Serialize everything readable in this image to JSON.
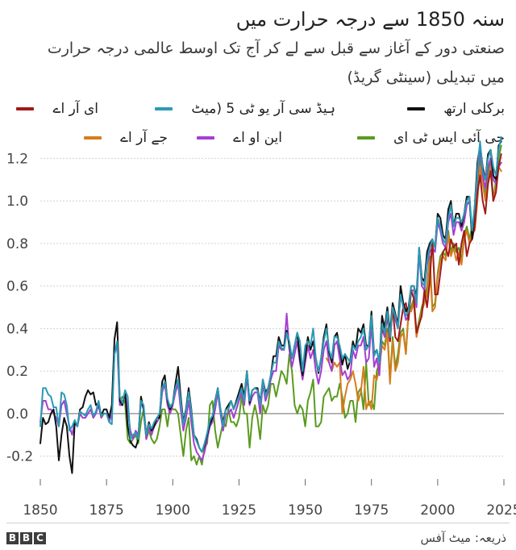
{
  "title": "سنہ 1850 سے درجہ حرارت میں",
  "subtitle": "صنعتی دور کے آغاز سے قبل سے لے کر آج تک اوسط عالمی درجہ حرارت میں تبدیلی (سینٹی گریڈ)",
  "source": "ذریعہ: میٹ آفس",
  "logo": "BBC",
  "colors": {
    "berkeley": "#111111",
    "hadcrut5": "#2a9bb5",
    "era": "#a11a1a",
    "gistemp": "#5a9a1e",
    "noaa": "#a43fd1",
    "jra": "#d67c1c",
    "grid": "#d0d0d0",
    "zero": "#888888"
  },
  "chart_data": {
    "type": "line",
    "title": "سنہ 1850 سے درجہ حرارت میں",
    "xlabel": "",
    "ylabel": "",
    "xlim": [
      1850,
      2025
    ],
    "ylim": [
      -0.3,
      1.3
    ],
    "x_ticks": [
      "1850",
      "1875",
      "1900",
      "1925",
      "1950",
      "1975",
      "2000",
      "2025"
    ],
    "y_ticks": [
      "-0.2",
      "0.0",
      "0.2",
      "0.4",
      "0.6",
      "0.8",
      "1.0",
      "1.2"
    ],
    "grid": true,
    "legend_position": "top",
    "series": [
      {
        "name": "برکلی ارتھ",
        "color": "#111111",
        "start_year": 1850,
        "values": [
          -0.14,
          -0.02,
          -0.05,
          -0.04,
          0.0,
          0.02,
          -0.06,
          -0.22,
          -0.1,
          -0.02,
          -0.06,
          -0.2,
          -0.28,
          -0.04,
          -0.06,
          0.02,
          0.03,
          0.08,
          0.11,
          0.09,
          0.1,
          0.04,
          0.05,
          -0.01,
          0.02,
          0.02,
          -0.02,
          0.04,
          0.35,
          0.43,
          0.06,
          0.04,
          0.1,
          -0.06,
          -0.13,
          -0.15,
          -0.16,
          -0.12,
          0.08,
          0.02,
          -0.1,
          -0.04,
          -0.08,
          -0.06,
          -0.02,
          -0.02,
          0.15,
          0.18,
          0.06,
          0.02,
          0.05,
          0.14,
          0.22,
          0.08,
          -0.04,
          0.02,
          0.12,
          0.02,
          -0.1,
          -0.12,
          -0.16,
          -0.18,
          -0.15,
          -0.1,
          -0.05,
          -0.02,
          0.06,
          0.12,
          0.02,
          -0.04,
          0.02,
          0.04,
          0.06,
          0.02,
          0.06,
          0.1,
          0.14,
          0.08,
          0.2,
          0.05,
          0.11,
          0.12,
          0.12,
          0.05,
          0.16,
          0.1,
          0.12,
          0.18,
          0.27,
          0.27,
          0.36,
          0.32,
          0.32,
          0.39,
          0.32,
          0.26,
          0.32,
          0.38,
          0.26,
          0.18,
          0.27,
          0.36,
          0.3,
          0.34,
          0.26,
          0.19,
          0.26,
          0.36,
          0.42,
          0.29,
          0.24,
          0.36,
          0.38,
          0.31,
          0.23,
          0.28,
          0.21,
          0.25,
          0.34,
          0.3,
          0.4,
          0.38,
          0.42,
          0.32,
          0.32,
          0.48,
          0.28,
          0.3,
          0.24,
          0.46,
          0.4,
          0.5,
          0.38,
          0.52,
          0.47,
          0.42,
          0.6,
          0.52,
          0.48,
          0.5,
          0.6,
          0.6,
          0.55,
          0.78,
          0.64,
          0.62,
          0.76,
          0.8,
          0.82,
          0.78,
          0.94,
          0.92,
          0.84,
          0.82,
          0.96,
          1.0,
          0.88,
          0.94,
          0.94,
          0.88,
          0.94,
          1.02,
          1.02,
          0.82,
          0.98,
          1.18,
          1.26,
          1.16,
          1.1,
          1.22,
          1.24,
          1.12,
          1.1,
          1.26,
          1.28
        ]
      },
      {
        "name": "ہیڈ سی آر یو ٹی 5 (میٹ",
        "color": "#2a9bb5",
        "start_year": 1850,
        "values": [
          -0.06,
          0.12,
          0.12,
          0.09,
          0.08,
          0.03,
          0.03,
          -0.06,
          0.1,
          0.09,
          0.04,
          -0.08,
          -0.06,
          -0.03,
          -0.06,
          0.01,
          0.0,
          -0.01,
          0.02,
          0.04,
          -0.01,
          0.01,
          0.06,
          -0.01,
          0.0,
          0.0,
          -0.04,
          -0.05,
          0.28,
          0.34,
          0.08,
          0.05,
          0.11,
          0.08,
          -0.12,
          -0.1,
          -0.09,
          -0.12,
          0.06,
          0.04,
          -0.1,
          -0.05,
          -0.07,
          -0.04,
          -0.02,
          0.0,
          0.12,
          0.15,
          0.07,
          0.03,
          0.05,
          0.12,
          0.16,
          0.06,
          -0.05,
          0.01,
          0.1,
          0.01,
          -0.1,
          -0.13,
          -0.16,
          -0.18,
          -0.14,
          -0.09,
          -0.03,
          -0.01,
          0.05,
          0.12,
          0.02,
          -0.06,
          0.02,
          0.02,
          0.06,
          0.02,
          0.05,
          0.08,
          0.12,
          0.06,
          0.2,
          0.06,
          0.11,
          0.12,
          0.11,
          0.04,
          0.16,
          0.08,
          0.12,
          0.18,
          0.24,
          0.24,
          0.34,
          0.31,
          0.3,
          0.38,
          0.34,
          0.26,
          0.32,
          0.38,
          0.34,
          0.2,
          0.32,
          0.34,
          0.32,
          0.4,
          0.26,
          0.2,
          0.26,
          0.34,
          0.4,
          0.3,
          0.26,
          0.36,
          0.36,
          0.32,
          0.26,
          0.28,
          0.26,
          0.24,
          0.32,
          0.3,
          0.34,
          0.36,
          0.4,
          0.3,
          0.32,
          0.46,
          0.27,
          0.3,
          0.24,
          0.42,
          0.38,
          0.48,
          0.36,
          0.5,
          0.46,
          0.4,
          0.56,
          0.5,
          0.46,
          0.48,
          0.6,
          0.6,
          0.52,
          0.78,
          0.62,
          0.6,
          0.72,
          0.78,
          0.82,
          0.78,
          0.92,
          0.88,
          0.82,
          0.8,
          0.92,
          0.98,
          0.88,
          0.92,
          0.92,
          0.9,
          0.94,
          1.0,
          1.02,
          0.86,
          0.98,
          1.14,
          1.28,
          1.14,
          1.1,
          1.2,
          1.24,
          1.16,
          1.12,
          1.24,
          1.3
        ]
      },
      {
        "name": "ای آر اے",
        "color": "#a11a1a",
        "start_year": 1979,
        "values": [
          0.38,
          0.42,
          0.46,
          0.34,
          0.5,
          0.36,
          0.34,
          0.42,
          0.5,
          0.52,
          0.44,
          0.58,
          0.54,
          0.38,
          0.42,
          0.46,
          0.58,
          0.5,
          0.62,
          0.82,
          0.56,
          0.56,
          0.66,
          0.76,
          0.78,
          0.74,
          0.82,
          0.78,
          0.8,
          0.7,
          0.8,
          0.86,
          0.74,
          0.8,
          0.82,
          0.88,
          1.04,
          1.12,
          1.0,
          0.94,
          1.08,
          1.14,
          1.0,
          1.04,
          1.16,
          1.22
        ]
      },
      {
        "name": "جی آئی ایس ٹی ای",
        "color": "#5a9a1e",
        "start_year": 1880,
        "values": [
          0.06,
          0.08,
          0.05,
          -0.12,
          -0.14,
          -0.12,
          -0.1,
          -0.14,
          -0.04,
          0.02,
          -0.12,
          -0.08,
          -0.12,
          -0.14,
          -0.12,
          -0.06,
          0.02,
          0.02,
          -0.06,
          0.04,
          0.02,
          0.02,
          0.0,
          -0.1,
          -0.2,
          -0.08,
          -0.02,
          -0.22,
          -0.2,
          -0.24,
          -0.2,
          -0.24,
          -0.16,
          -0.14,
          0.04,
          0.06,
          -0.08,
          -0.16,
          -0.1,
          -0.04,
          -0.06,
          0.02,
          -0.04,
          -0.04,
          -0.06,
          -0.02,
          0.08,
          0.0,
          0.0,
          -0.16,
          -0.02,
          0.04,
          -0.02,
          -0.12,
          0.04,
          0.0,
          0.04,
          0.14,
          0.14,
          0.08,
          0.14,
          0.2,
          0.18,
          0.14,
          0.28,
          0.2,
          0.04,
          0.0,
          0.04,
          0.02,
          -0.06,
          0.06,
          0.1,
          0.16,
          -0.06,
          -0.06,
          -0.04,
          0.08,
          0.1,
          0.12,
          0.06,
          0.08,
          0.08,
          0.14,
          0.08,
          -0.02,
          0.0,
          0.06,
          0.06,
          -0.04,
          0.1,
          0.12,
          0.02,
          0.24,
          0.04,
          0.06,
          0.02,
          0.2,
          0.24,
          0.34,
          0.32,
          0.4,
          0.16,
          0.36,
          0.22,
          0.28,
          0.38,
          0.4,
          0.28,
          0.48,
          0.5,
          0.54,
          0.38,
          0.44,
          0.5,
          0.54,
          0.6,
          0.74,
          0.5,
          0.52,
          0.66,
          0.74,
          0.76,
          0.74,
          0.86,
          0.76,
          0.8,
          0.76,
          0.78,
          0.72,
          0.84,
          0.88,
          0.82,
          0.88,
          0.9,
          1.04,
          1.2,
          1.12,
          1.02,
          1.12,
          1.2,
          1.0,
          1.1,
          1.2,
          1.26
        ]
      },
      {
        "name": "این او اے",
        "color": "#a43fd1",
        "start_year": 1850,
        "values": [
          -0.04,
          0.06,
          0.06,
          0.02,
          0.02,
          0.0,
          -0.02,
          -0.06,
          0.04,
          0.06,
          0.0,
          -0.06,
          -0.1,
          -0.04,
          -0.06,
          0.0,
          -0.02,
          -0.02,
          0.0,
          0.02,
          -0.02,
          0.0,
          0.04,
          -0.02,
          0.0,
          0.0,
          -0.04,
          0.0,
          0.28,
          0.32,
          0.04,
          0.04,
          0.1,
          0.02,
          -0.08,
          -0.12,
          -0.08,
          -0.1,
          0.06,
          0.02,
          -0.12,
          -0.06,
          -0.1,
          -0.06,
          -0.04,
          -0.02,
          0.1,
          0.14,
          0.04,
          0.0,
          0.04,
          0.1,
          0.14,
          0.02,
          -0.08,
          -0.02,
          0.06,
          -0.04,
          -0.14,
          -0.18,
          -0.2,
          -0.22,
          -0.18,
          -0.12,
          -0.06,
          -0.04,
          0.02,
          0.1,
          0.0,
          -0.08,
          0.0,
          0.0,
          0.02,
          -0.02,
          0.02,
          0.06,
          0.1,
          0.04,
          0.18,
          0.04,
          0.08,
          0.1,
          0.1,
          0.0,
          0.14,
          0.06,
          0.1,
          0.16,
          0.2,
          0.2,
          0.32,
          0.3,
          0.3,
          0.47,
          0.3,
          0.22,
          0.28,
          0.34,
          0.24,
          0.16,
          0.24,
          0.32,
          0.26,
          0.3,
          0.2,
          0.14,
          0.2,
          0.3,
          0.34,
          0.24,
          0.2,
          0.32,
          0.34,
          0.26,
          0.18,
          0.2,
          0.16,
          0.18,
          0.3,
          0.26,
          0.32,
          0.32,
          0.36,
          0.24,
          0.26,
          0.42,
          0.22,
          0.26,
          0.18,
          0.4,
          0.36,
          0.46,
          0.34,
          0.5,
          0.44,
          0.4,
          0.56,
          0.5,
          0.44,
          0.46,
          0.58,
          0.58,
          0.5,
          0.76,
          0.6,
          0.58,
          0.7,
          0.76,
          0.78,
          0.76,
          0.9,
          0.86,
          0.8,
          0.78,
          0.9,
          0.94,
          0.84,
          0.9,
          0.9,
          0.86,
          0.9,
          0.98,
          1.0,
          0.84,
          0.96,
          1.12,
          1.24,
          1.12,
          1.06,
          1.16,
          1.2,
          1.1,
          1.08,
          1.16,
          1.18
        ]
      },
      {
        "name": "جے آر اے",
        "color": "#d67c1c",
        "start_year": 1958,
        "values": [
          0.26,
          0.24,
          0.2,
          0.24,
          0.22,
          0.24,
          0.0,
          0.08,
          0.14,
          0.16,
          0.2,
          0.14,
          0.06,
          0.1,
          0.22,
          0.02,
          0.06,
          0.02,
          0.18,
          0.16,
          0.22,
          0.32,
          0.3,
          0.38,
          0.14,
          0.34,
          0.2,
          0.24,
          0.36,
          0.38,
          0.28,
          0.48,
          0.48,
          0.52,
          0.36,
          0.42,
          0.48,
          0.52,
          0.56,
          0.72,
          0.48,
          0.5,
          0.64,
          0.72,
          0.74,
          0.72,
          0.84,
          0.74,
          0.78,
          0.72,
          0.76,
          0.7,
          0.82,
          0.86,
          0.8,
          0.86,
          0.86,
          1.0,
          1.16,
          1.08,
          1.0,
          1.08,
          1.16,
          1.0,
          1.06,
          1.16,
          1.14
        ]
      }
    ]
  },
  "legend": [
    {
      "label": "برکلی ارتھ",
      "color": "#111111"
    },
    {
      "label": "ہیڈ سی آر یو ٹی 5 (میٹ",
      "color": "#2a9bb5"
    },
    {
      "label": "ای آر اے",
      "color": "#a11a1a"
    },
    {
      "label": "جی آئی ایس ٹی ای",
      "color": "#5a9a1e"
    },
    {
      "label": "این او اے",
      "color": "#a43fd1"
    },
    {
      "label": "جے آر اے",
      "color": "#d67c1c"
    }
  ]
}
